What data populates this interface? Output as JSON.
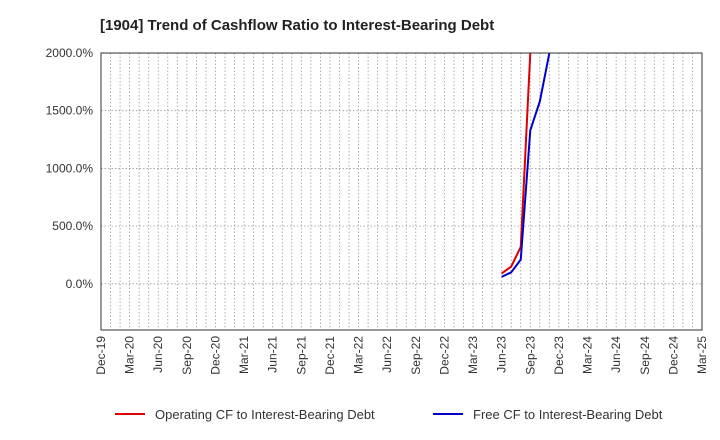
{
  "chart_data": {
    "type": "line",
    "title": "[1904]  Trend of Cashflow Ratio to Interest-Bearing Debt",
    "xlabel": "",
    "ylabel": "",
    "ylim": [
      -400,
      2000
    ],
    "x_range": [
      "2019-12",
      "2025-03"
    ],
    "yticks": [
      0,
      500,
      1000,
      1500,
      2000
    ],
    "ytick_labels": [
      "0.0%",
      "500.0%",
      "1000.0%",
      "1500.0%",
      "2000.0%"
    ],
    "xtick_dates": [
      "2019-12",
      "2020-03",
      "2020-06",
      "2020-09",
      "2020-12",
      "2021-03",
      "2021-06",
      "2021-09",
      "2021-12",
      "2022-03",
      "2022-06",
      "2022-09",
      "2022-12",
      "2023-03",
      "2023-06",
      "2023-09",
      "2023-12",
      "2024-03",
      "2024-06",
      "2024-09",
      "2024-12",
      "2025-03"
    ],
    "xtick_labels": [
      "Dec-19",
      "Mar-20",
      "Jun-20",
      "Sep-20",
      "Dec-20",
      "Mar-21",
      "Jun-21",
      "Sep-21",
      "Dec-21",
      "Mar-22",
      "Jun-22",
      "Sep-22",
      "Dec-22",
      "Mar-23",
      "Jun-23",
      "Sep-23",
      "Dec-23",
      "Mar-24",
      "Jun-24",
      "Sep-24",
      "Dec-24",
      "Mar-25"
    ],
    "grid": true,
    "legend_position": "bottom",
    "series": [
      {
        "name": "Operating CF to Interest-Bearing Debt",
        "color": "#dd0000",
        "x": [
          "2023-06",
          "2023-07",
          "2023-08",
          "2023-09"
        ],
        "y": [
          90,
          150,
          320,
          2000
        ]
      },
      {
        "name": "Free CF to Interest-Bearing Debt",
        "color": "#0000cc",
        "x": [
          "2023-06",
          "2023-07",
          "2023-08",
          "2023-09",
          "2023-10",
          "2023-11"
        ],
        "y": [
          60,
          100,
          210,
          1330,
          1580,
          2000
        ]
      }
    ]
  }
}
